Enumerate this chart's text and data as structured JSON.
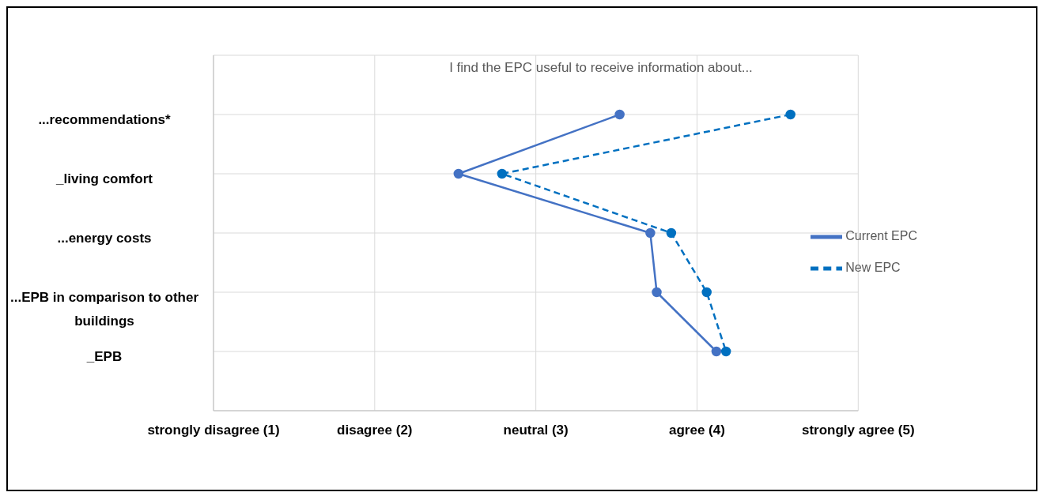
{
  "chart_data": {
    "type": "line",
    "orientation": "horizontal",
    "title": "I find the EPC useful to receive information about...",
    "categories": [
      "...recommendations*",
      "_living comfort",
      "...energy costs",
      "...EPB in comparison to other buildings",
      "_EPB"
    ],
    "series": [
      {
        "name": "Current EPC",
        "color": "#4472c4",
        "line_style": "solid",
        "values": [
          3.52,
          2.52,
          3.71,
          3.75,
          4.12
        ]
      },
      {
        "name": "New EPC",
        "color": "#0070c0",
        "line_style": "dashed",
        "values": [
          4.58,
          2.79,
          3.84,
          4.06,
          4.18
        ]
      }
    ],
    "xlim": [
      1,
      5
    ],
    "xticks": [
      {
        "value": 1,
        "label": "strongly disagree (1)"
      },
      {
        "value": 2,
        "label": "disagree (2)"
      },
      {
        "value": 3,
        "label": "neutral (3)"
      },
      {
        "value": 4,
        "label": "agree (4)"
      },
      {
        "value": 5,
        "label": "strongly agree  (5)"
      }
    ],
    "grid": true,
    "legend": "right",
    "marker": "circle"
  }
}
